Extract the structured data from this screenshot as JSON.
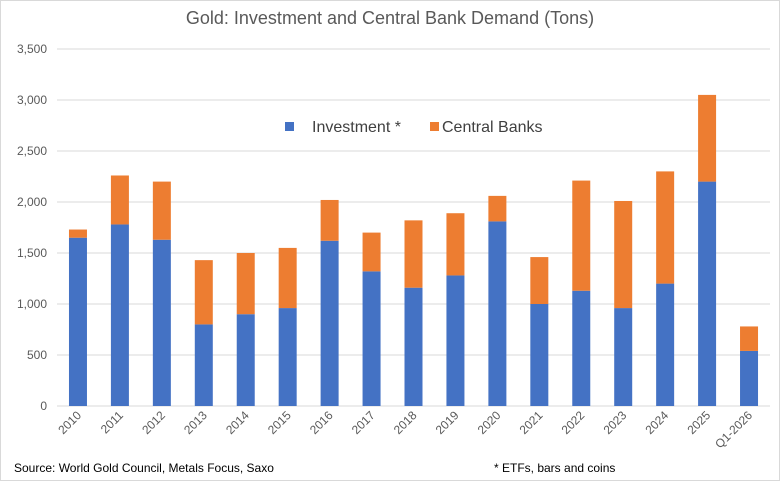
{
  "chart_data": {
    "type": "bar",
    "stacked": true,
    "title": "Gold: Investment and Central Bank Demand (Tons)",
    "categories": [
      "2010",
      "2011",
      "2012",
      "2013",
      "2014",
      "2015",
      "2016",
      "2017",
      "2018",
      "2019",
      "2020",
      "2021",
      "2022",
      "2023",
      "2024",
      "2025",
      "Q1-2026"
    ],
    "series": [
      {
        "name": "Investment *",
        "color": "#4472c4",
        "values": [
          1650,
          1780,
          1630,
          800,
          900,
          960,
          1620,
          1320,
          1160,
          1280,
          1810,
          1000,
          1130,
          960,
          1200,
          2200,
          540
        ]
      },
      {
        "name": "Central Banks",
        "color": "#ed7d31",
        "values": [
          80,
          480,
          570,
          630,
          600,
          590,
          400,
          380,
          660,
          610,
          250,
          460,
          1080,
          1050,
          1100,
          850,
          240
        ]
      }
    ],
    "ylim": [
      0,
      3500
    ],
    "yticks": [
      "0",
      "500",
      "1,000",
      "1,500",
      "2,000",
      "2,500",
      "3,000",
      "3,500"
    ],
    "ytick_values": [
      0,
      500,
      1000,
      1500,
      2000,
      2500,
      3000,
      3500
    ],
    "grid": true,
    "legend_position": "top-center"
  },
  "footer": {
    "source": "Source: World Gold Council, Metals Focus, Saxo",
    "note": "* ETFs, bars and coins"
  },
  "colors": {
    "grid": "#d9d9d9",
    "axis_text": "#595959"
  }
}
